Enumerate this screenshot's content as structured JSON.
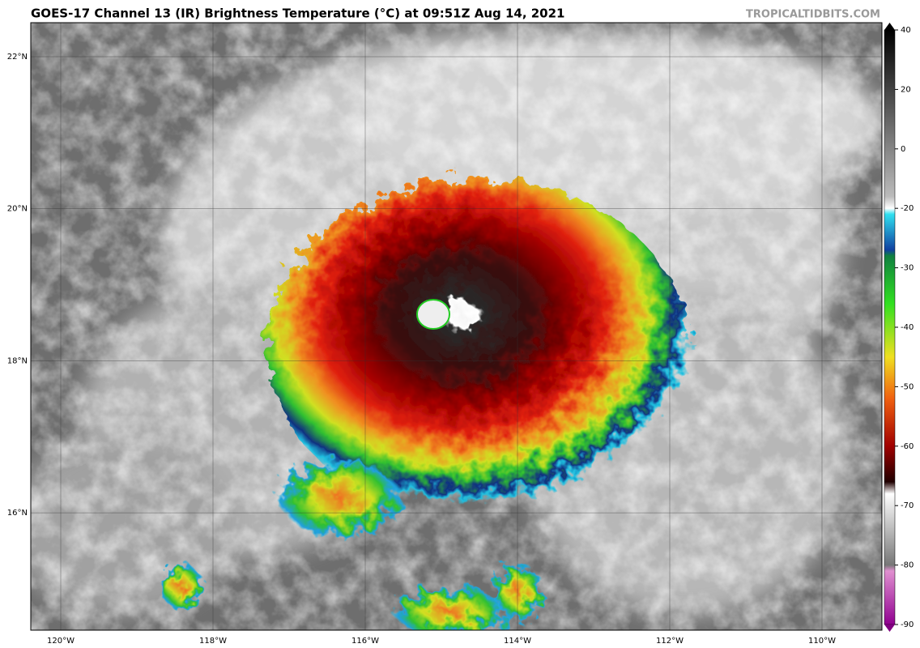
{
  "header": {
    "title": "GOES-17 Channel 13 (IR) Brightness Temperature (°C) at 09:51Z Aug 14, 2021",
    "credit": "TROPICALTIDBITS.COM"
  },
  "map": {
    "lat_labels": [
      "22°N",
      "20°N",
      "18°N",
      "16°N"
    ],
    "lon_labels": [
      "120°W",
      "118°W",
      "116°W",
      "114°W",
      "112°W",
      "110°W"
    ]
  },
  "colorbar": {
    "ticks": [
      40,
      20,
      0,
      -20,
      -30,
      -40,
      -50,
      -60,
      -70,
      -80,
      -90
    ]
  }
}
